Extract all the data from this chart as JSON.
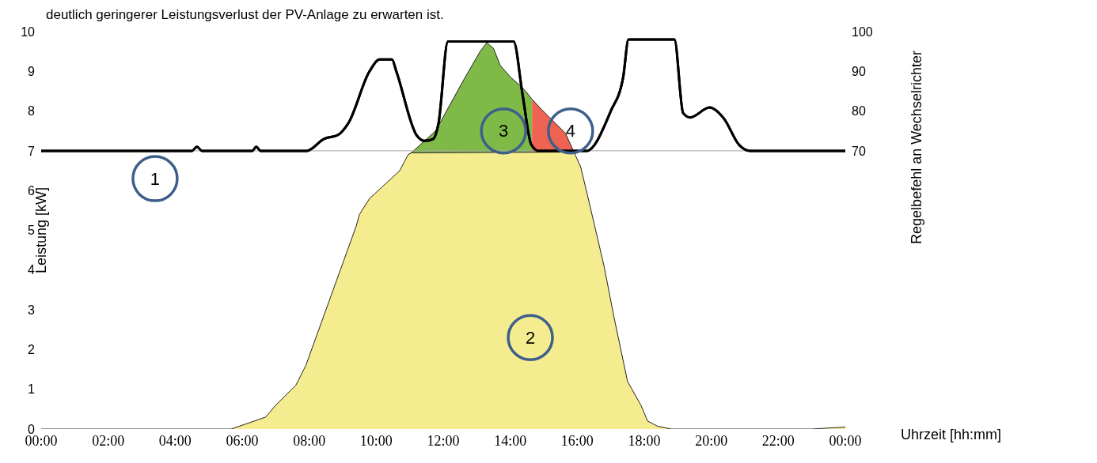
{
  "chart_data": {
    "type": "area",
    "xlabel": "Uhrzeit [hh:mm]",
    "ylabel": "Leistung [kW]",
    "y2label": "Regelbefehl an Wechselrichter",
    "xlim": [
      0,
      24
    ],
    "xticks": [
      {
        "value": 0,
        "label": "00:00"
      },
      {
        "value": 2,
        "label": "02:00"
      },
      {
        "value": 4,
        "label": "04:00"
      },
      {
        "value": 6,
        "label": "06:00"
      },
      {
        "value": 8,
        "label": "08:00"
      },
      {
        "value": 10,
        "label": "10:00"
      },
      {
        "value": 12,
        "label": "12:00"
      },
      {
        "value": 14,
        "label": "14:00"
      },
      {
        "value": 16,
        "label": "16:00"
      },
      {
        "value": 18,
        "label": "18:00"
      },
      {
        "value": 20,
        "label": "20:00"
      },
      {
        "value": 22,
        "label": "22:00"
      },
      {
        "value": 24,
        "label": "00:00"
      }
    ],
    "ylim": [
      0,
      10
    ],
    "yticks": [
      0,
      1,
      2,
      3,
      4,
      5,
      6,
      7,
      8,
      9,
      10
    ],
    "y2lim": [
      0,
      100
    ],
    "y2ticks": [
      70,
      80,
      90,
      100
    ],
    "grid": false,
    "line_style": "solid",
    "ref_lines": [
      {
        "axis": "y",
        "value": 7,
        "color": "#a6a6a6"
      }
    ],
    "series": [
      {
        "color": "#7fba48",
        "x": [
          10.95,
          11.05,
          11.77,
          12.6,
          13.1,
          13.3,
          13.5,
          13.7,
          14.0,
          14.4,
          14.65
        ],
        "values": [
          6.9,
          6.95,
          7.5,
          8.77,
          9.5,
          9.72,
          9.58,
          9.15,
          8.86,
          8.56,
          8.3
        ]
      },
      {
        "color": "#ee6352",
        "x": [
          14.65,
          14.9,
          15.1,
          15.65,
          15.9
        ],
        "values": [
          8.3,
          8.07,
          7.9,
          7.44,
          6.97
        ]
      },
      {
        "color": "#f5ec8f",
        "x": [
          0,
          5.67,
          6.7,
          7.0,
          7.6,
          7.9,
          9.4,
          9.5,
          9.8,
          10.7,
          10.95,
          11.05,
          15.9,
          16.1,
          16.3,
          16.8,
          17.1,
          17.5,
          17.9,
          18.1,
          18.4,
          18.8,
          23.0,
          24
        ],
        "values": [
          0,
          0,
          0.3,
          0.6,
          1.1,
          1.6,
          5.1,
          5.4,
          5.8,
          6.5,
          6.9,
          6.95,
          6.97,
          6.6,
          5.9,
          4.1,
          2.8,
          1.2,
          0.6,
          0.2,
          0.07,
          0,
          0,
          0.05
        ]
      },
      {
        "type": "line",
        "axis": "y2",
        "color": "#000000",
        "x": [
          0,
          4.5,
          4.65,
          4.8,
          6.3,
          6.42,
          6.55,
          7.93,
          8.44,
          8.86,
          9.17,
          9.8,
          10.1,
          10.47,
          10.6,
          11.2,
          11.45,
          11.7,
          11.86,
          12.14,
          14.1,
          14.37,
          14.63,
          14.84,
          16.28,
          17.0,
          17.37,
          17.53,
          18.9,
          19.16,
          19.37,
          19.95,
          20.37,
          20.84,
          21.16,
          24
        ],
        "values": [
          70,
          70,
          71,
          70,
          70,
          71,
          70,
          70,
          73,
          74,
          77,
          90,
          93,
          93,
          90,
          74,
          72.5,
          73,
          77,
          97.5,
          97.5,
          84,
          71.5,
          70,
          70,
          80,
          88.5,
          98,
          98,
          79.5,
          78.4,
          80.9,
          78.2,
          71.4,
          70,
          70
        ]
      }
    ],
    "annotations": [
      "deutlich geringerer Leistungsverlust der PV-Anlage zu erwarten ist.",
      "1",
      "2",
      "3",
      "4"
    ]
  }
}
